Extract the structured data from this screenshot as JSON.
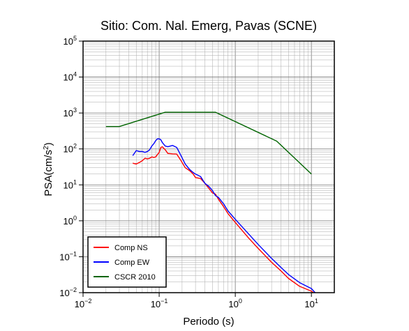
{
  "chart_data": {
    "type": "line",
    "title": "Sitio: Com. Nal. Emerg, Pavas (SCNE)",
    "xlabel": "Periodo (s)",
    "ylabel": {
      "main": "PSA(cm/s",
      "sup": "2",
      "close": ")"
    },
    "x_scale": "log",
    "y_scale": "log",
    "xlim": [
      0.01,
      20
    ],
    "ylim": [
      0.01,
      100000
    ],
    "grid": true,
    "legend_position": "bottom-left",
    "x_ticks": [
      {
        "base": "10",
        "exp": "−2",
        "value": 0.01
      },
      {
        "base": "10",
        "exp": "−1",
        "value": 0.1
      },
      {
        "base": "10",
        "exp": "0",
        "value": 1
      },
      {
        "base": "10",
        "exp": "1",
        "value": 10
      }
    ],
    "y_ticks": [
      {
        "base": "10",
        "exp": "−2",
        "value": 0.01
      },
      {
        "base": "10",
        "exp": "−1",
        "value": 0.1
      },
      {
        "base": "10",
        "exp": "0",
        "value": 1
      },
      {
        "base": "10",
        "exp": "1",
        "value": 10
      },
      {
        "base": "10",
        "exp": "2",
        "value": 100
      },
      {
        "base": "10",
        "exp": "3",
        "value": 1000
      },
      {
        "base": "10",
        "exp": "4",
        "value": 10000
      },
      {
        "base": "10",
        "exp": "5",
        "value": 100000
      }
    ],
    "series": [
      {
        "name": "Comp NS",
        "color": "#ff0000",
        "x": [
          0.045,
          0.05,
          0.055,
          0.06,
          0.065,
          0.07,
          0.075,
          0.08,
          0.085,
          0.09,
          0.095,
          0.1,
          0.105,
          0.11,
          0.12,
          0.13,
          0.15,
          0.17,
          0.19,
          0.22,
          0.25,
          0.28,
          0.3,
          0.35,
          0.4,
          0.45,
          0.5,
          0.55,
          0.6,
          0.7,
          0.8,
          1.0,
          1.5,
          2,
          3,
          4,
          5,
          7,
          10,
          12
        ],
        "y": [
          40,
          38,
          42,
          47,
          55,
          53,
          55,
          60,
          58,
          60,
          70,
          80,
          110,
          115,
          95,
          75,
          73,
          72,
          50,
          30,
          25,
          20,
          16,
          15,
          11,
          8,
          6,
          5.5,
          4,
          2.5,
          1.6,
          0.9,
          0.33,
          0.17,
          0.07,
          0.04,
          0.025,
          0.015,
          0.011,
          0.0085
        ]
      },
      {
        "name": "Comp EW",
        "color": "#0000ff",
        "x": [
          0.045,
          0.05,
          0.055,
          0.06,
          0.065,
          0.07,
          0.075,
          0.08,
          0.085,
          0.09,
          0.095,
          0.1,
          0.105,
          0.11,
          0.12,
          0.13,
          0.15,
          0.17,
          0.19,
          0.22,
          0.25,
          0.28,
          0.3,
          0.35,
          0.4,
          0.45,
          0.5,
          0.55,
          0.6,
          0.7,
          0.8,
          1.0,
          1.5,
          2,
          3,
          4,
          5,
          7,
          10,
          12
        ],
        "y": [
          65,
          90,
          85,
          85,
          80,
          85,
          95,
          120,
          140,
          170,
          190,
          190,
          180,
          150,
          120,
          115,
          125,
          110,
          70,
          38,
          27,
          22,
          20,
          17,
          11,
          9,
          7,
          5,
          4.5,
          3,
          1.9,
          1.1,
          0.43,
          0.22,
          0.09,
          0.05,
          0.032,
          0.019,
          0.013,
          0.0085
        ]
      },
      {
        "name": "CSCR 2010",
        "color": "#006400",
        "x": [
          0.02,
          0.03,
          0.12,
          0.55,
          3.5,
          10
        ],
        "y": [
          420,
          420,
          1050,
          1050,
          165,
          20
        ]
      }
    ]
  }
}
